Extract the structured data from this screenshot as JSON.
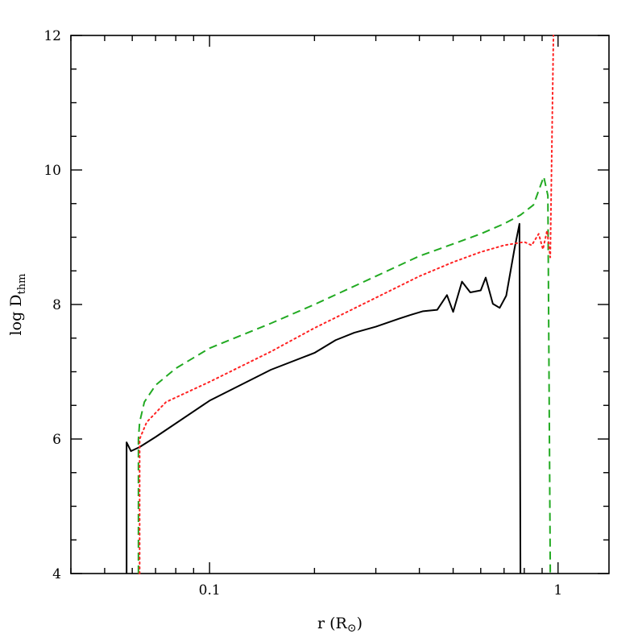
{
  "chart_data": {
    "type": "line",
    "xscale": "log",
    "xlim": [
      0.04,
      1.4
    ],
    "ylim": [
      4,
      12
    ],
    "xlabel": "r (R",
    "xlabel_sub": "⊙",
    "xlabel_end": ")",
    "ylabel": "log D",
    "ylabel_sub": "thm",
    "x_ticks": [
      {
        "value": 0.1,
        "label": "0.1"
      },
      {
        "value": 1,
        "label": "1"
      }
    ],
    "y_ticks": [
      {
        "value": 4,
        "label": "4"
      },
      {
        "value": 6,
        "label": "6"
      },
      {
        "value": 8,
        "label": "8"
      },
      {
        "value": 10,
        "label": "10"
      },
      {
        "value": 12,
        "label": "12"
      }
    ],
    "grid": false,
    "legend": "none",
    "series": [
      {
        "color": "#000000",
        "style": "solid",
        "points": [
          [
            0.0578,
            4.0
          ],
          [
            0.0578,
            5.95
          ],
          [
            0.0595,
            5.82
          ],
          [
            0.063,
            5.88
          ],
          [
            0.07,
            6.03
          ],
          [
            0.1,
            6.57
          ],
          [
            0.15,
            7.03
          ],
          [
            0.2,
            7.28
          ],
          [
            0.23,
            7.47
          ],
          [
            0.26,
            7.58
          ],
          [
            0.3,
            7.67
          ],
          [
            0.35,
            7.79
          ],
          [
            0.38,
            7.85
          ],
          [
            0.41,
            7.9
          ],
          [
            0.45,
            7.92
          ],
          [
            0.48,
            8.14
          ],
          [
            0.5,
            7.89
          ],
          [
            0.53,
            8.34
          ],
          [
            0.56,
            8.18
          ],
          [
            0.6,
            8.21
          ],
          [
            0.62,
            8.4
          ],
          [
            0.65,
            8.01
          ],
          [
            0.68,
            7.95
          ],
          [
            0.71,
            8.13
          ],
          [
            0.75,
            8.83
          ],
          [
            0.775,
            9.2
          ],
          [
            0.78,
            4.0
          ]
        ]
      },
      {
        "color": "#22aa22",
        "style": "dashed",
        "points": [
          [
            0.0625,
            4.0
          ],
          [
            0.0625,
            6.0
          ],
          [
            0.063,
            6.25
          ],
          [
            0.065,
            6.55
          ],
          [
            0.07,
            6.8
          ],
          [
            0.08,
            7.05
          ],
          [
            0.1,
            7.35
          ],
          [
            0.15,
            7.72
          ],
          [
            0.2,
            8.0
          ],
          [
            0.3,
            8.42
          ],
          [
            0.4,
            8.72
          ],
          [
            0.5,
            8.9
          ],
          [
            0.6,
            9.05
          ],
          [
            0.7,
            9.2
          ],
          [
            0.78,
            9.33
          ],
          [
            0.85,
            9.48
          ],
          [
            0.91,
            9.9
          ],
          [
            0.935,
            9.62
          ],
          [
            0.95,
            4.0
          ]
        ]
      },
      {
        "color": "#ff2222",
        "style": "dotted",
        "points": [
          [
            0.063,
            4.0
          ],
          [
            0.063,
            6.0
          ],
          [
            0.066,
            6.25
          ],
          [
            0.075,
            6.55
          ],
          [
            0.1,
            6.85
          ],
          [
            0.15,
            7.3
          ],
          [
            0.2,
            7.65
          ],
          [
            0.3,
            8.1
          ],
          [
            0.4,
            8.42
          ],
          [
            0.5,
            8.63
          ],
          [
            0.6,
            8.78
          ],
          [
            0.7,
            8.88
          ],
          [
            0.8,
            8.93
          ],
          [
            0.84,
            8.88
          ],
          [
            0.88,
            9.05
          ],
          [
            0.905,
            8.82
          ],
          [
            0.93,
            9.1
          ],
          [
            0.95,
            8.7
          ],
          [
            0.97,
            12.0
          ]
        ]
      }
    ]
  }
}
